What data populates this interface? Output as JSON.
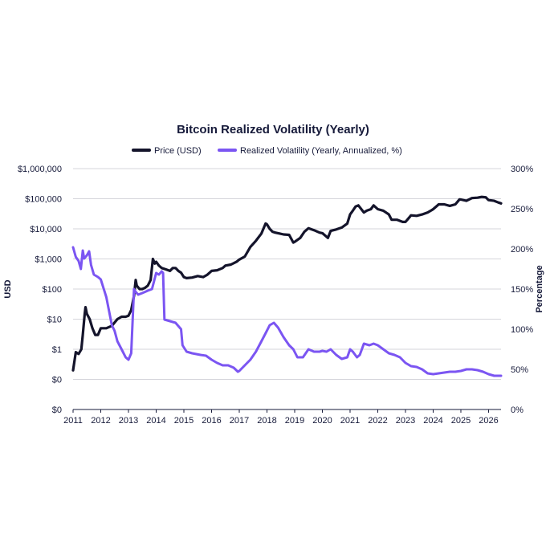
{
  "chart_data": {
    "type": "line",
    "title": "Bitcoin Realized Volatility (Yearly)",
    "x_ticks": [
      "2011",
      "2012",
      "2013",
      "2014",
      "2015",
      "2016",
      "2017",
      "2018",
      "2019",
      "2020",
      "2021",
      "2022",
      "2023",
      "2024",
      "2025",
      "2026"
    ],
    "xlim": [
      2011.0,
      2026.45
    ],
    "left_axis": {
      "label": "USD",
      "scale": "log",
      "ticks": [
        "$0",
        "$0",
        "$1",
        "$10",
        "$100",
        "$1,000",
        "$10,000",
        "$100,000",
        "$1,000,000"
      ],
      "tick_values": [
        0.01,
        0.1,
        1,
        10,
        100,
        1000,
        10000,
        100000,
        1000000
      ],
      "ylim": [
        0.01,
        1000000
      ]
    },
    "right_axis": {
      "label": "Percentage",
      "scale": "linear",
      "ticks": [
        "0%",
        "50%",
        "100%",
        "150%",
        "200%",
        "250%",
        "300%"
      ],
      "tick_values": [
        0,
        50,
        100,
        150,
        200,
        250,
        300
      ],
      "ylim": [
        0,
        300
      ]
    },
    "grid": "horizontal",
    "legend_position": "top-center",
    "series": [
      {
        "name": "Price (USD)",
        "axis": "left",
        "color": "#14142b",
        "x": [
          2011.0,
          2011.1,
          2011.2,
          2011.3,
          2011.35,
          2011.42,
          2011.45,
          2011.5,
          2011.6,
          2011.7,
          2011.8,
          2011.9,
          2012.0,
          2012.2,
          2012.4,
          2012.6,
          2012.75,
          2012.9,
          2013.0,
          2013.1,
          2013.2,
          2013.26,
          2013.3,
          2013.4,
          2013.5,
          2013.6,
          2013.7,
          2013.8,
          2013.88,
          2013.95,
          2014.0,
          2014.1,
          2014.2,
          2014.35,
          2014.5,
          2014.6,
          2014.7,
          2014.8,
          2014.9,
          2015.0,
          2015.1,
          2015.3,
          2015.5,
          2015.7,
          2015.85,
          2016.0,
          2016.2,
          2016.4,
          2016.5,
          2016.7,
          2016.9,
          2017.0,
          2017.2,
          2017.4,
          2017.6,
          2017.8,
          2017.95,
          2018.0,
          2018.1,
          2018.2,
          2018.3,
          2018.45,
          2018.6,
          2018.8,
          2018.95,
          2019.0,
          2019.2,
          2019.35,
          2019.5,
          2019.7,
          2019.9,
          2020.0,
          2020.2,
          2020.3,
          2020.5,
          2020.7,
          2020.9,
          2021.0,
          2021.1,
          2021.2,
          2021.3,
          2021.5,
          2021.6,
          2021.75,
          2021.85,
          2022.0,
          2022.2,
          2022.4,
          2022.5,
          2022.7,
          2022.9,
          2023.0,
          2023.2,
          2023.4,
          2023.6,
          2023.8,
          2023.95,
          2024.0,
          2024.2,
          2024.4,
          2024.6,
          2024.8,
          2024.95,
          2025.0,
          2025.2,
          2025.4,
          2025.6,
          2025.75,
          2025.9,
          2026.0,
          2026.2,
          2026.35,
          2026.45
        ],
        "values": [
          0.2,
          0.8,
          0.7,
          1.0,
          3.0,
          15,
          25,
          15,
          10,
          5,
          3,
          3,
          5,
          5,
          6,
          10,
          12,
          12,
          13,
          20,
          60,
          200,
          130,
          100,
          100,
          110,
          130,
          200,
          1000,
          700,
          800,
          600,
          500,
          450,
          400,
          500,
          500,
          400,
          350,
          250,
          230,
          240,
          270,
          250,
          300,
          400,
          420,
          500,
          600,
          650,
          800,
          950,
          1200,
          2500,
          4000,
          7000,
          15000,
          14000,
          10000,
          8000,
          7500,
          7000,
          6500,
          6300,
          3500,
          3700,
          5000,
          8000,
          10500,
          9000,
          7500,
          7200,
          5000,
          8500,
          9500,
          11000,
          15000,
          30000,
          40000,
          55000,
          60000,
          35000,
          40000,
          45000,
          60000,
          45000,
          40000,
          30000,
          20000,
          20000,
          17000,
          17000,
          28000,
          27000,
          30000,
          35000,
          42000,
          45000,
          65000,
          65000,
          58000,
          65000,
          95000,
          94000,
          85000,
          105000,
          108000,
          115000,
          112000,
          90000,
          85000,
          75000,
          70000
        ],
        "x_right_label_unused": ""
      },
      {
        "name": "Realized Volatility (Yearly, Annualized, %)",
        "axis": "right",
        "color": "#7b55f2",
        "x": [
          2011.0,
          2011.1,
          2011.2,
          2011.28,
          2011.35,
          2011.4,
          2011.5,
          2011.58,
          2011.65,
          2011.75,
          2011.9,
          2012.0,
          2012.2,
          2012.4,
          2012.5,
          2012.6,
          2012.75,
          2012.9,
          2013.0,
          2013.1,
          2013.2,
          2013.25,
          2013.3,
          2013.35,
          2013.5,
          2013.7,
          2013.85,
          2014.0,
          2014.1,
          2014.2,
          2014.25,
          2014.3,
          2014.5,
          2014.7,
          2014.9,
          2014.95,
          2015.1,
          2015.3,
          2015.6,
          2015.8,
          2016.0,
          2016.2,
          2016.4,
          2016.6,
          2016.8,
          2016.95,
          2017.0,
          2017.2,
          2017.4,
          2017.6,
          2017.8,
          2017.95,
          2018.1,
          2018.25,
          2018.4,
          2018.6,
          2018.8,
          2018.95,
          2019.1,
          2019.3,
          2019.5,
          2019.7,
          2019.9,
          2020.0,
          2020.15,
          2020.3,
          2020.5,
          2020.7,
          2020.9,
          2021.0,
          2021.1,
          2021.25,
          2021.35,
          2021.5,
          2021.7,
          2021.85,
          2022.0,
          2022.2,
          2022.4,
          2022.6,
          2022.8,
          2023.0,
          2023.2,
          2023.4,
          2023.6,
          2023.8,
          2024.0,
          2024.2,
          2024.4,
          2024.6,
          2024.8,
          2025.0,
          2025.2,
          2025.4,
          2025.6,
          2025.8,
          2026.0,
          2026.2,
          2026.35,
          2026.45
        ],
        "values": [
          202,
          190,
          185,
          175,
          198,
          188,
          192,
          197,
          180,
          168,
          165,
          162,
          140,
          105,
          98,
          85,
          75,
          65,
          62,
          70,
          150,
          147,
          145,
          143,
          145,
          148,
          150,
          170,
          168,
          172,
          170,
          112,
          110,
          108,
          100,
          80,
          72,
          70,
          68,
          67,
          62,
          58,
          55,
          55,
          52,
          47,
          48,
          55,
          62,
          72,
          85,
          95,
          105,
          108,
          102,
          90,
          80,
          75,
          65,
          65,
          75,
          72,
          72,
          73,
          72,
          75,
          68,
          63,
          65,
          75,
          72,
          65,
          68,
          82,
          80,
          82,
          80,
          75,
          70,
          68,
          65,
          58,
          54,
          53,
          50,
          45,
          44,
          45,
          46,
          47,
          47,
          48,
          50,
          50,
          49,
          47,
          44,
          42,
          42,
          42
        ]
      }
    ]
  }
}
